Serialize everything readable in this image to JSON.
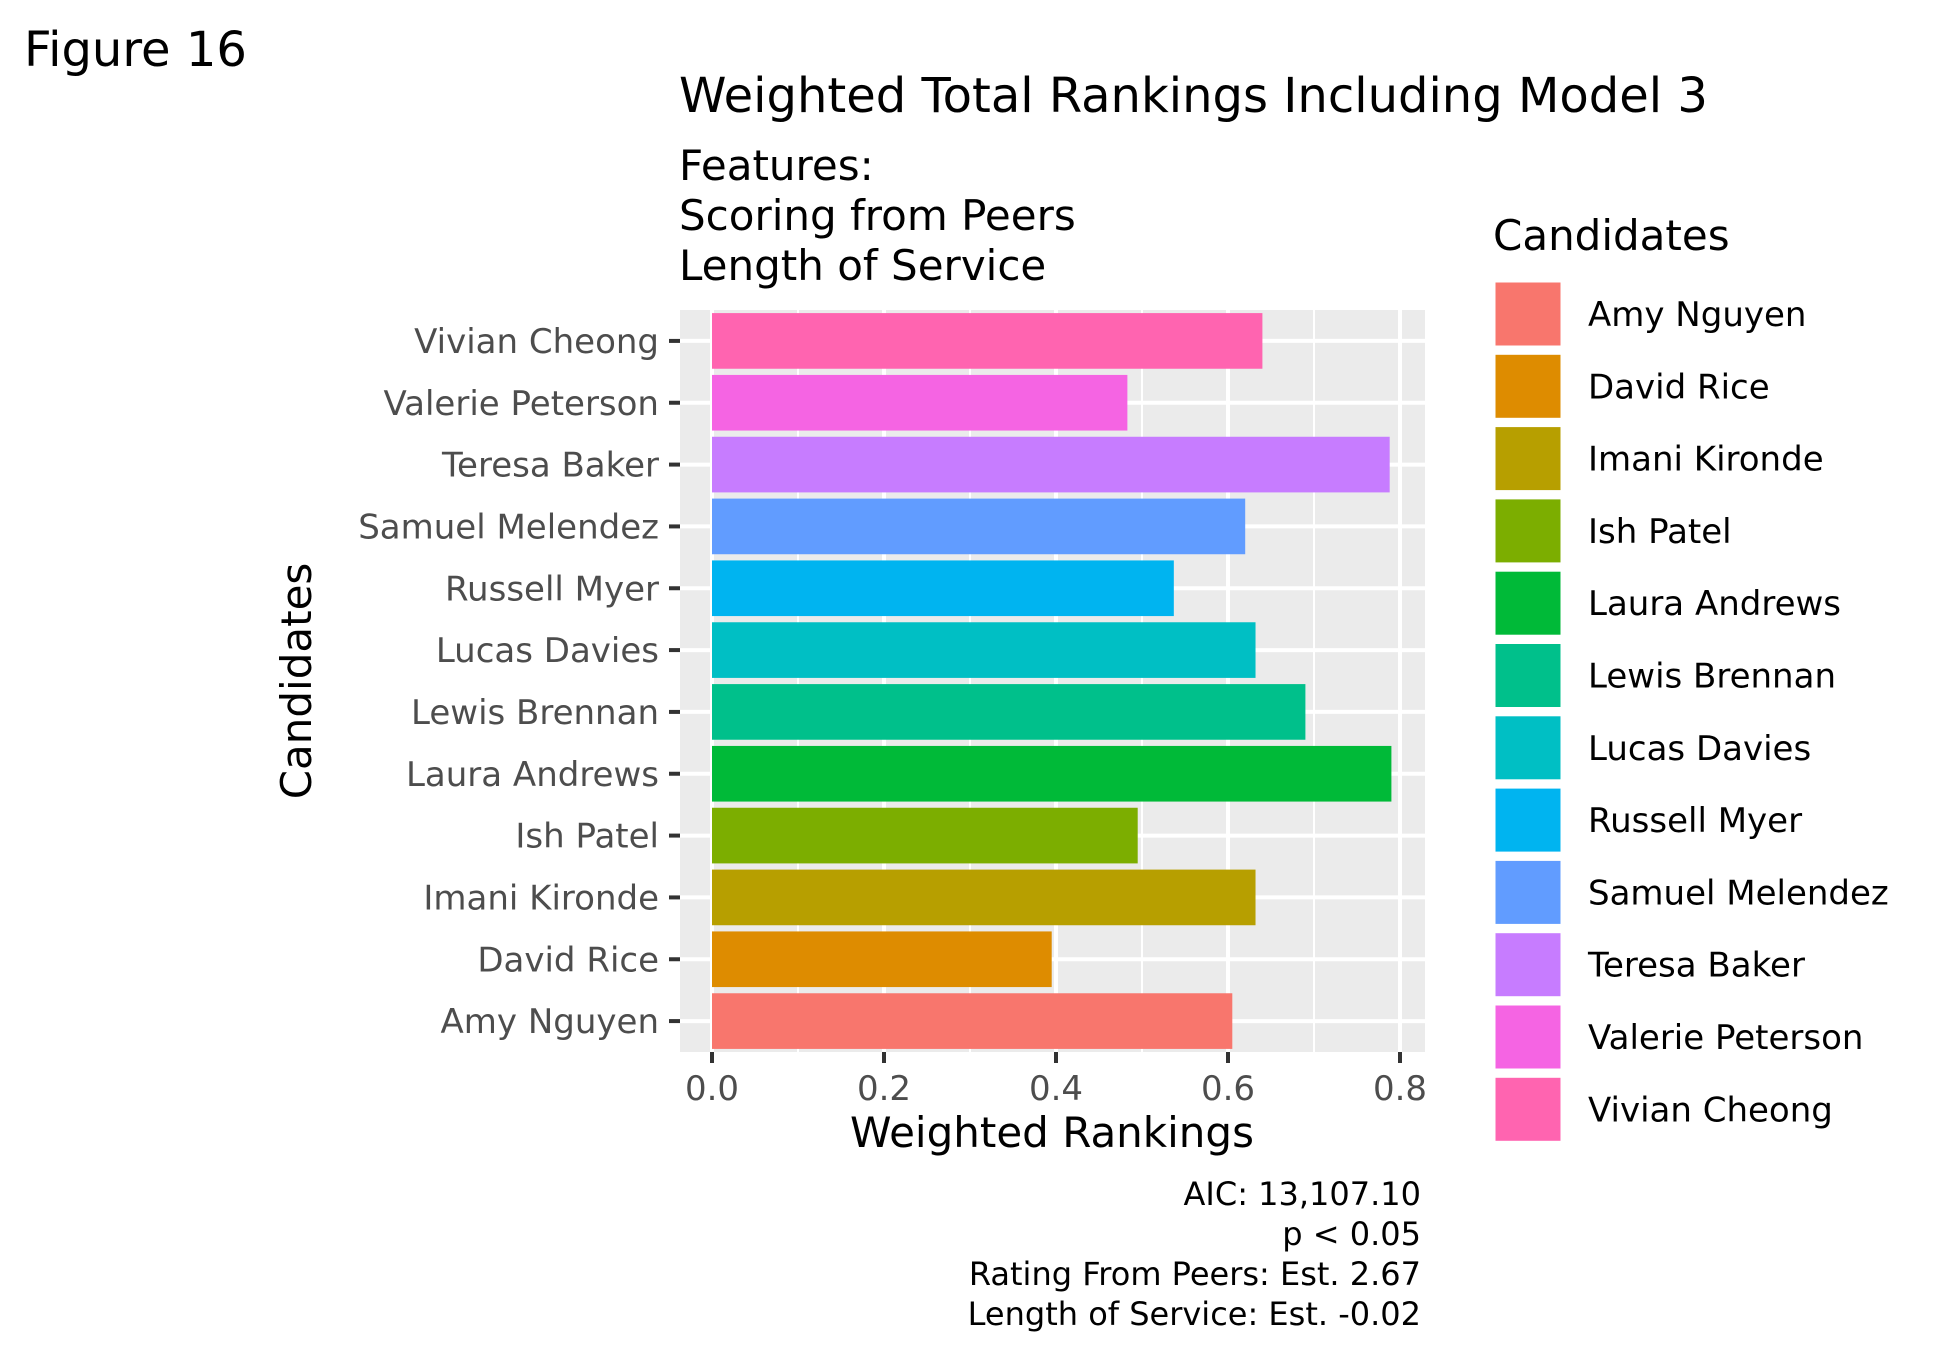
{
  "figure_label": "Figure 16",
  "chart_data": {
    "type": "bar",
    "orientation": "horizontal",
    "title": "Weighted Total Rankings Including Model 3",
    "subtitle_lines": [
      "Features:",
      "Scoring from Peers",
      "Length of Service"
    ],
    "xlabel": "Weighted Rankings",
    "ylabel": "Candidates",
    "xlim": [
      0,
      0.82
    ],
    "x_ticks": [
      0.0,
      0.2,
      0.4,
      0.6,
      0.8
    ],
    "x_tick_labels": [
      "0.0",
      "0.2",
      "0.4",
      "0.6",
      "0.8"
    ],
    "grid": true,
    "categories": [
      "Amy Nguyen",
      "David Rice",
      "Imani Kironde",
      "Ish Patel",
      "Laura Andrews",
      "Lewis Brennan",
      "Lucas Davies",
      "Russell Myer",
      "Samuel Melendez",
      "Teresa Baker",
      "Valerie Peterson",
      "Vivian Cheong"
    ],
    "values": [
      0.605,
      0.395,
      0.632,
      0.495,
      0.79,
      0.69,
      0.632,
      0.537,
      0.62,
      0.788,
      0.483,
      0.64
    ],
    "colors": [
      "#F8766D",
      "#DE8C00",
      "#B79F00",
      "#7CAE00",
      "#00BA38",
      "#00C08B",
      "#00BFC4",
      "#00B4F0",
      "#619CFF",
      "#C77CFF",
      "#F564E3",
      "#FF64B0"
    ],
    "legend": {
      "title": "Candidates",
      "placement": "right"
    },
    "caption_lines": [
      "AIC: 13,107.10",
      "p < 0.05",
      "Rating From Peers: Est. 2.67",
      "Length of Service: Est. -0.02"
    ]
  }
}
